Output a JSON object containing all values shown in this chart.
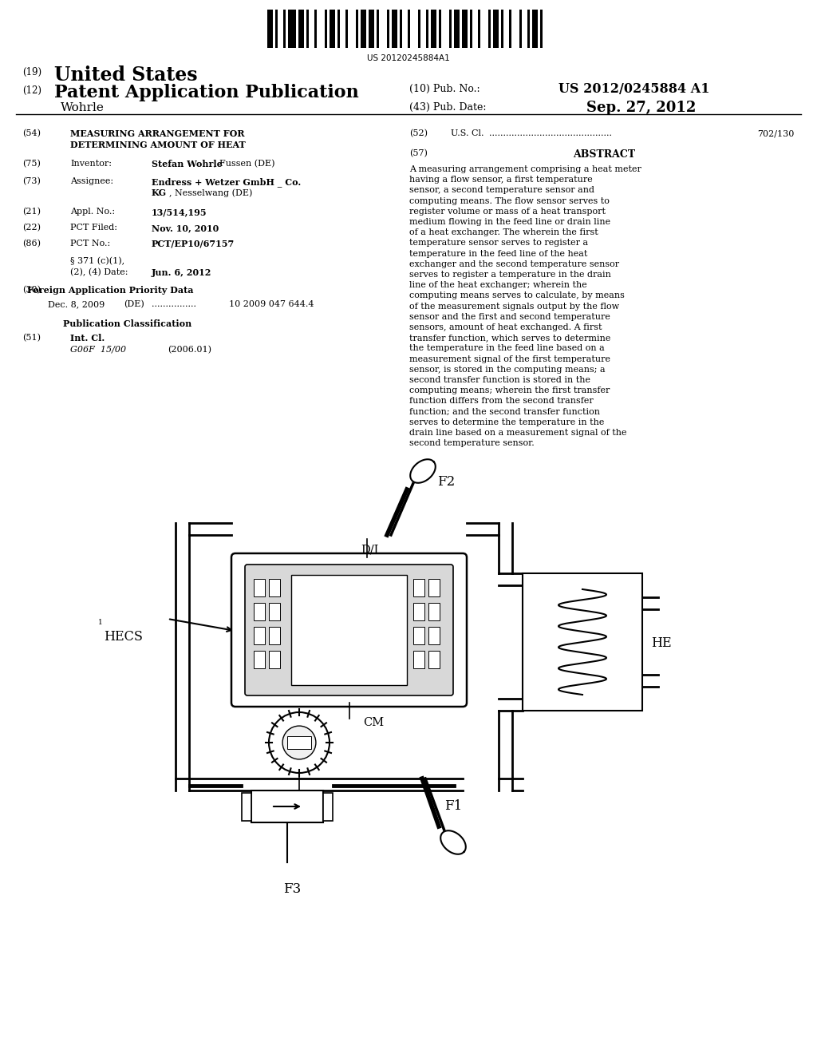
{
  "background_color": "#ffffff",
  "barcode_text": "US 20120245884A1",
  "patent_number": "US 2012/0245884 A1",
  "pub_date": "Sep. 27, 2012",
  "country": "United States",
  "pub_type": "Patent Application Publication",
  "inventor_name": "Wohrle",
  "field54_title1": "MEASURING ARRANGEMENT FOR",
  "field54_title2": "DETERMINING AMOUNT OF HEAT",
  "field75_val_bold": "Stefan Wohrle",
  "field75_val_normal": ", Fussen (DE)",
  "field73_val1_bold": "Endress + Wetzer GmbH _ Co.",
  "field73_val2_bold": "KG",
  "field73_val2_normal": ", Nesselwang (DE)",
  "field21_val": "13/514,195",
  "field22_val": "Nov. 10, 2010",
  "field86_val": "PCT/EP10/67157",
  "field371_val": "Jun. 6, 2012",
  "field30_date": "Dec. 8, 2009",
  "field30_appno": "10 2009 047 644.4",
  "field51_class": "G06F  15/00",
  "field51_year": "(2006.01)",
  "field52_val": "702/130",
  "abstract_text": "A measuring arrangement comprising a heat meter having a flow sensor, a first temperature sensor, a second temperature sensor and computing means. The flow sensor serves to register volume or mass of a heat transport medium flowing in the feed line or drain line of a heat exchanger. The wherein the first temperature sensor serves to register a temperature in the feed line of the heat exchanger and the second temperature sensor serves to register a temperature in the drain line of the heat exchanger; wherein the computing means serves to calculate, by means of the measurement signals output by the flow sensor and the first and second temperature sensors, amount of heat exchanged. A first transfer function, which serves to determine the temperature in the feed line based on a measurement signal of the first temperature sensor, is stored in the computing means; a second transfer function is stored in the computing means; wherein the first transfer function differs from the second transfer function; and the second transfer function serves to determine the temperature in the drain line based on a measurement signal of the second temperature sensor."
}
